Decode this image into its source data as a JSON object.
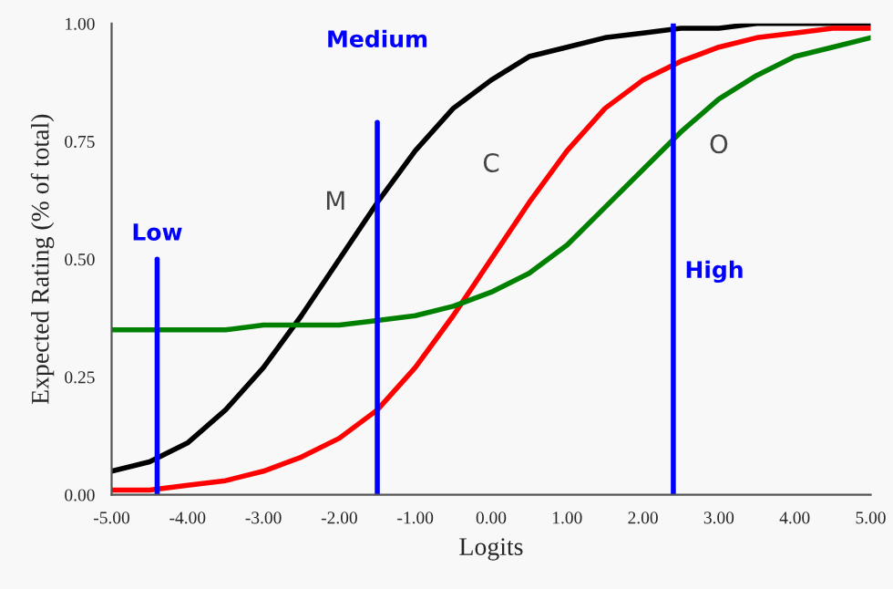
{
  "chart_data": {
    "type": "line",
    "xlabel": "Logits",
    "ylabel": "Expected Rating (% of total)",
    "x": [
      -5,
      -4.5,
      -4,
      -3.5,
      -3,
      -2.5,
      -2,
      -1.5,
      -1,
      -0.5,
      0,
      0.5,
      1,
      1.5,
      2,
      2.5,
      3,
      3.5,
      4,
      4.5,
      5
    ],
    "series": [
      {
        "name": "M",
        "color": "#000000",
        "values": [
          0.05,
          0.07,
          0.11,
          0.18,
          0.27,
          0.38,
          0.5,
          0.62,
          0.73,
          0.82,
          0.88,
          0.93,
          0.95,
          0.97,
          0.98,
          0.99,
          0.99,
          1.0,
          1.0,
          1.0,
          1.0
        ]
      },
      {
        "name": "C",
        "color": "#ff0000",
        "values": [
          0.01,
          0.01,
          0.02,
          0.03,
          0.05,
          0.08,
          0.12,
          0.18,
          0.27,
          0.38,
          0.5,
          0.62,
          0.73,
          0.82,
          0.88,
          0.92,
          0.95,
          0.97,
          0.98,
          0.99,
          0.99
        ]
      },
      {
        "name": "O",
        "color": "#008000",
        "values": [
          0.35,
          0.35,
          0.35,
          0.35,
          0.36,
          0.36,
          0.36,
          0.37,
          0.38,
          0.4,
          0.43,
          0.47,
          0.53,
          0.61,
          0.69,
          0.77,
          0.84,
          0.89,
          0.93,
          0.95,
          0.97
        ]
      }
    ],
    "ref_lines": [
      {
        "axis": "x",
        "value": -4.4,
        "label": "Low",
        "color": "#0000ff"
      },
      {
        "axis": "x",
        "value": -1.5,
        "label": "Medium",
        "color": "#0000ff"
      },
      {
        "axis": "x",
        "value": 2.4,
        "label": "High",
        "color": "#0000ff"
      }
    ],
    "xlim": [
      -5,
      5
    ],
    "xticks": [
      {
        "value": -5,
        "label": "-5.00"
      },
      {
        "value": -4,
        "label": "-4.00"
      },
      {
        "value": -3,
        "label": "-3.00"
      },
      {
        "value": -2,
        "label": "-2.00"
      },
      {
        "value": -1,
        "label": "-1.00"
      },
      {
        "value": 0,
        "label": "0.00"
      },
      {
        "value": 1,
        "label": "1.00"
      },
      {
        "value": 2,
        "label": "2.00"
      },
      {
        "value": 3,
        "label": "3.00"
      },
      {
        "value": 4,
        "label": "4.00"
      },
      {
        "value": 5,
        "label": "5.00"
      }
    ],
    "ylim": [
      0,
      1
    ],
    "yticks": [
      {
        "value": 0,
        "label": "0.00"
      },
      {
        "value": 0.25,
        "label": "0.25"
      },
      {
        "value": 0.5,
        "label": "0.50"
      },
      {
        "value": 0.75,
        "label": "0.75"
      },
      {
        "value": 1,
        "label": "1.00"
      }
    ],
    "grid": false,
    "legend": false
  }
}
